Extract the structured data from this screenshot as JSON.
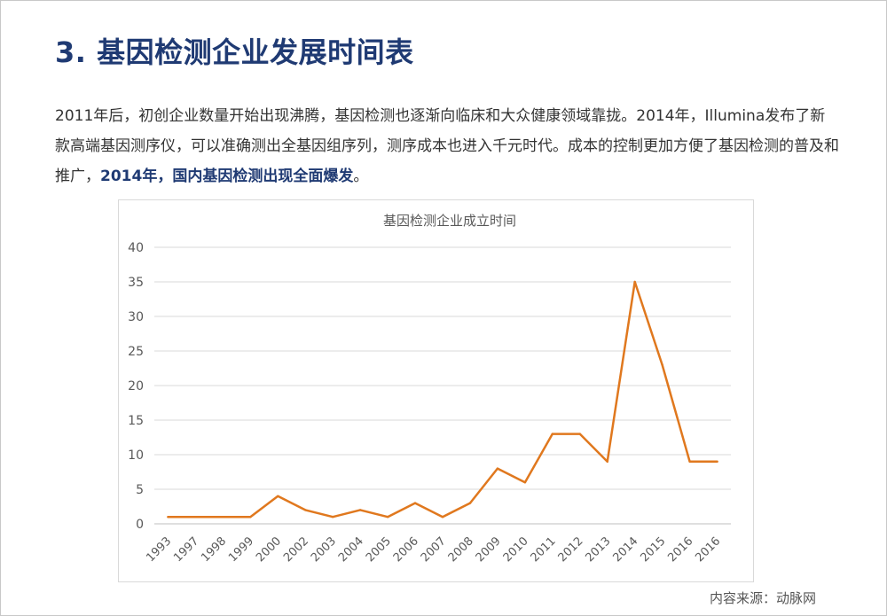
{
  "header": {
    "title": "3. 基因检测企业发展时间表"
  },
  "paragraph": {
    "text_part1": "2011年后，初创企业数量开始出现沸腾，基因检测也逐渐向临床和大众健康领域靠拢。2014年，Illumina发布了新款高端基因测序仪，可以准确测出全基因组序列，测序成本也进入千元时代。成本的控制更加方便了基因检测的普及和推广，",
    "text_highlight": "2014年，国内基因检测出现全面爆发",
    "text_end": "。"
  },
  "source": "内容来源：动脉网",
  "colors": {
    "title": "#1f3a73",
    "line": "#e0781e",
    "grid": "#d9d9d9",
    "axis_text": "#595959"
  },
  "chart_data": {
    "type": "line",
    "title": "基因检测企业成立时间",
    "xlabel": "",
    "ylabel": "",
    "categories": [
      "1993",
      "1997",
      "1998",
      "1999",
      "2000",
      "2002",
      "2003",
      "2004",
      "2005",
      "2006",
      "2007",
      "2008",
      "2009",
      "2010",
      "2011",
      "2012",
      "2013",
      "2014",
      "2015",
      "2016",
      "2016"
    ],
    "values": [
      1,
      1,
      1,
      1,
      4,
      2,
      1,
      2,
      1,
      3,
      1,
      3,
      8,
      6,
      13,
      13,
      9,
      35,
      23,
      9,
      9
    ],
    "ylim": [
      0,
      40
    ],
    "yticks": [
      0,
      5,
      10,
      15,
      20,
      25,
      30,
      35,
      40
    ],
    "grid": true,
    "legend": "none"
  }
}
